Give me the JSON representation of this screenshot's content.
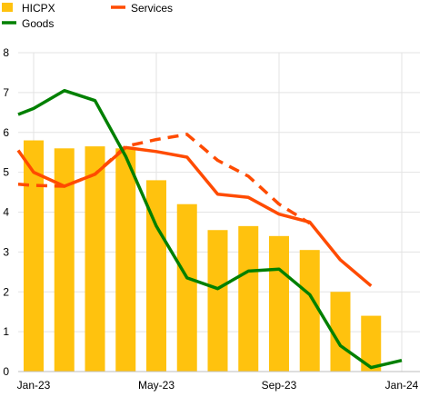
{
  "chart_data": {
    "type": "bar",
    "title": "",
    "xlabel": "",
    "ylabel": "",
    "ylim": [
      0,
      8
    ],
    "y_ticks": [
      "0",
      "1",
      "2",
      "3",
      "4",
      "5",
      "6",
      "7",
      "8"
    ],
    "x_ticks": [
      "Jan-23",
      "May-23",
      "Sep-23",
      "Jan-24"
    ],
    "grid": true,
    "legend": [
      {
        "label": "HICPX",
        "type": "bar",
        "color": "#FFC20E"
      },
      {
        "label": "Services",
        "type": "line",
        "color": "#FF4B00"
      },
      {
        "label": "Goods",
        "type": "line",
        "color": "#008000"
      }
    ],
    "categories": [
      "Jan-23",
      "Feb-23",
      "Mar-23",
      "Apr-23",
      "May-23",
      "Jun-23",
      "Jul-23",
      "Aug-23",
      "Sep-23",
      "Oct-23",
      "Nov-23",
      "Dec-23",
      "Jan-24"
    ],
    "series": [
      {
        "name": "HICPX",
        "type": "bar",
        "color": "#FFC20E",
        "values": [
          5.8,
          5.6,
          5.65,
          5.6,
          4.8,
          4.2,
          3.55,
          3.65,
          3.4,
          3.05,
          2.0,
          1.4,
          null
        ]
      },
      {
        "name": "Services",
        "type": "line",
        "color": "#FF4B00",
        "dash": false,
        "x": [
          -0.6,
          0,
          1,
          2,
          3,
          4,
          5,
          6,
          7,
          8,
          9,
          10,
          11
        ],
        "values": [
          5.55,
          5.0,
          4.65,
          4.95,
          5.62,
          5.52,
          5.38,
          4.45,
          4.37,
          3.95,
          3.75,
          2.8,
          2.15
        ]
      },
      {
        "name": "",
        "type": "line",
        "color": "#FF4B00",
        "dash": true,
        "x": [
          -0.6,
          0,
          1,
          2,
          3,
          4,
          5,
          6,
          7,
          8,
          9
        ],
        "values": [
          4.7,
          4.67,
          4.65,
          4.95,
          5.65,
          5.82,
          5.95,
          5.3,
          4.9,
          4.2,
          3.72
        ]
      },
      {
        "name": "Goods",
        "type": "line",
        "color": "#008000",
        "dash": false,
        "x": [
          -0.6,
          0,
          1,
          2,
          3,
          4,
          5,
          6,
          7,
          8,
          9,
          10,
          11,
          12
        ],
        "values": [
          6.45,
          6.6,
          7.05,
          6.8,
          5.4,
          3.65,
          2.35,
          2.08,
          2.52,
          2.57,
          1.93,
          0.65,
          0.1,
          0.28
        ]
      }
    ]
  }
}
